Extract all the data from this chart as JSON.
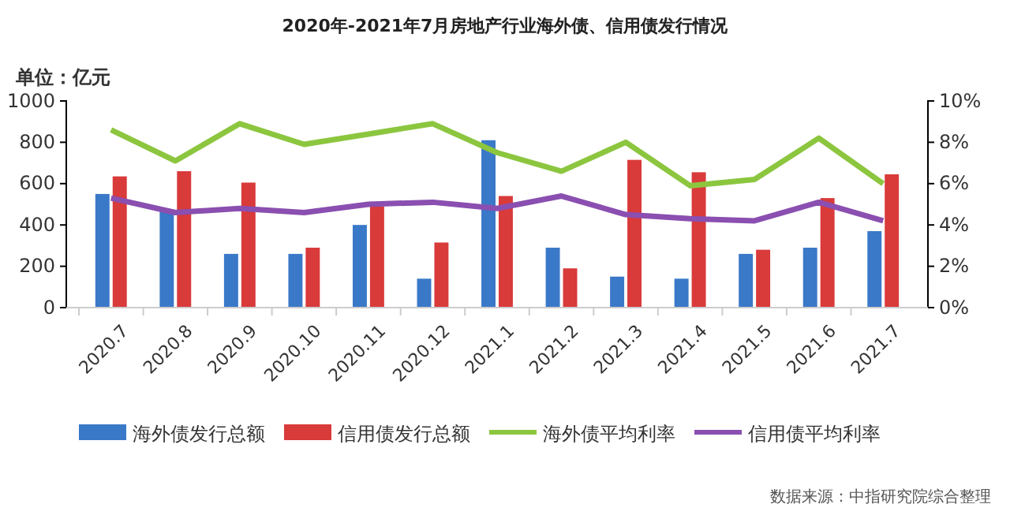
{
  "chart_data": {
    "type": "bar",
    "title": "2020年-2021年7月房地产行业海外债、信用债发行情况",
    "ylabel": "单位：亿元",
    "categories": [
      "2020.7",
      "2020.8",
      "2020.9",
      "2020.10",
      "2020.11",
      "2020.12",
      "2021.1",
      "2021.2",
      "2021.3",
      "2021.4",
      "2021.5",
      "2021.6",
      "2021.7"
    ],
    "series": [
      {
        "name": "海外债发行总额",
        "color": "#3a78c8",
        "values": [
          550,
          470,
          260,
          260,
          400,
          140,
          810,
          290,
          150,
          140,
          260,
          290,
          370
        ]
      },
      {
        "name": "信用债发行总额",
        "color": "#d93a3a",
        "values": [
          635,
          660,
          605,
          290,
          490,
          315,
          540,
          190,
          715,
          655,
          280,
          530,
          645
        ]
      },
      {
        "name": "海外债平均利率",
        "type": "line",
        "axis": "y2",
        "color": "#8cc63f",
        "values": [
          8.6,
          7.1,
          8.9,
          7.9,
          8.4,
          8.9,
          7.5,
          6.6,
          8.0,
          5.9,
          6.2,
          8.2,
          6.0
        ]
      },
      {
        "name": "信用债平均利率",
        "type": "line",
        "axis": "y2",
        "color": "#8a4fb0",
        "values": [
          5.3,
          4.6,
          4.8,
          4.6,
          5.0,
          5.1,
          4.8,
          5.4,
          4.5,
          4.3,
          4.2,
          5.1,
          4.2
        ]
      }
    ],
    "ylim": [
      0,
      1000
    ],
    "yticks": [
      0,
      200,
      400,
      600,
      800,
      1000
    ],
    "y2lim": [
      0,
      10
    ],
    "y2ticks": [
      {
        "value": 0,
        "label": "0%"
      },
      {
        "value": 2,
        "label": "2%"
      },
      {
        "value": 4,
        "label": "4%"
      },
      {
        "value": 6,
        "label": "6%"
      },
      {
        "value": 8,
        "label": "8%"
      },
      {
        "value": 10,
        "label": "10%"
      }
    ],
    "legend": "bottom",
    "grid": false,
    "annotations": [
      "数据来源：中指研究院综合整理"
    ]
  }
}
